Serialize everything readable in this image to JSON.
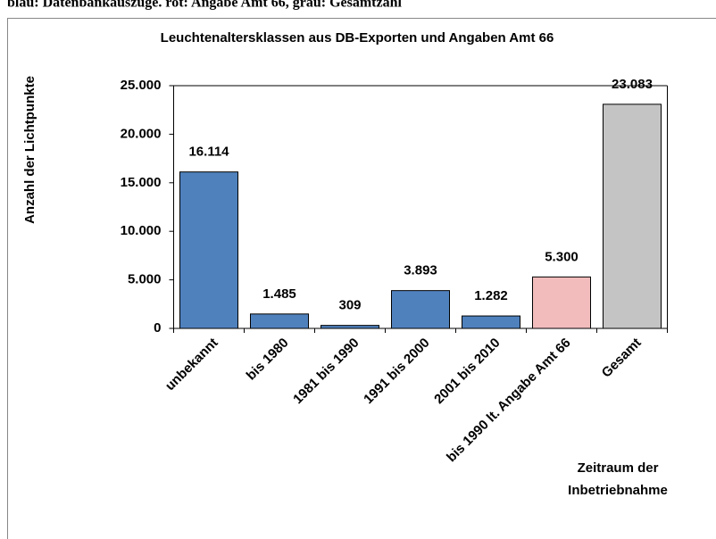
{
  "chart_data": {
    "type": "bar",
    "caption": "blau: Datenbankauszüge. rot: Angabe Amt 66, grau: Gesamtzahl",
    "title": "Leuchtenaltersklassen aus DB-Exporten und Angaben Amt  66",
    "y_label": "Anzahl der Lichtpunkte",
    "x_label": [
      "Zeitraum der",
      "Inbetriebnahme"
    ],
    "categories": [
      "unbekannt",
      "bis 1980",
      "1981 bis 1990",
      "1991 bis 2000",
      "2001 bis 2010",
      "bis 1990 lt. Angabe Amt 66",
      "Gesamt"
    ],
    "values": [
      16114,
      1485,
      309,
      3893,
      1282,
      5300,
      23083
    ],
    "value_labels": [
      "16.114",
      "1.485",
      "309",
      "3.893",
      "1.282",
      "5.300",
      "23.083"
    ],
    "colors": [
      "#4f81bd",
      "#4f81bd",
      "#4f81bd",
      "#4f81bd",
      "#4f81bd",
      "#f2bcbc",
      "#c4c4c4"
    ],
    "ylim": [
      0,
      25000
    ],
    "yticks": [
      0,
      {
        "value": 5000,
        "label": "5.000"
      },
      {
        "value": 10000,
        "label": "10.000"
      },
      {
        "value": 15000,
        "label": "15.000"
      },
      {
        "value": 20000,
        "label": "20.000"
      },
      {
        "value": 25000,
        "label": "25.000"
      }
    ],
    "grid": false
  }
}
